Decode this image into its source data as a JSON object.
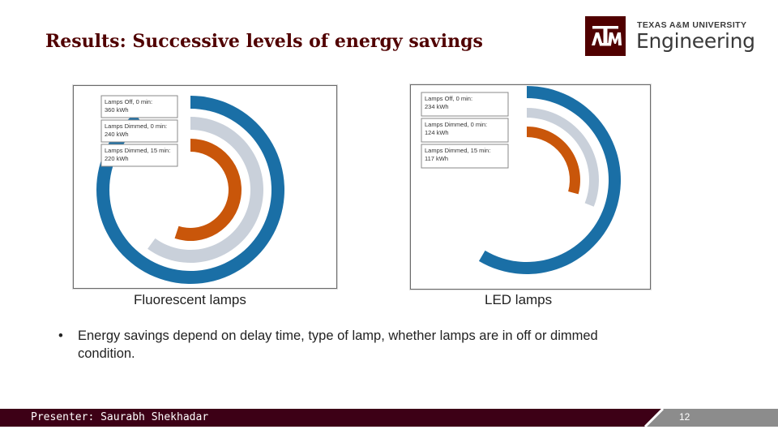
{
  "slide": {
    "title": "Results: Successive levels of energy savings",
    "logo": {
      "university": "TEXAS A&M UNIVERSITY",
      "college": "Engineering"
    },
    "captions": {
      "fluorescent": "Fluorescent lamps",
      "led": "LED lamps"
    },
    "bullet": "Energy savings depend on delay time, type of lamp, whether lamps are in off or dimmed condition.",
    "footer": {
      "presenter": "Presenter: Saurabh Shekhadar",
      "page_number": "12"
    },
    "colors": {
      "title": "#500000",
      "footer": "#3d0016",
      "footer_gray": "#8c8c8c"
    }
  },
  "chart_data": [
    {
      "type": "radial-bar",
      "title": "",
      "series": [
        {
          "name": "Lamps Off, 0 min",
          "label": "Lamps Off, 0 min:",
          "value_label": "360 kWh",
          "value": 360,
          "color": "#1a6fa6"
        },
        {
          "name": "Lamps Dimmed, 0 min",
          "label": "Lamps Dimmed, 0 min:",
          "value_label": "240 kWh",
          "value": 240,
          "color": "#c9d0da"
        },
        {
          "name": "Lamps Dimmed, 15 min",
          "label": "Lamps Dimmed, 15 min:",
          "value_label": "220 kWh",
          "value": 220,
          "color": "#c9560a"
        }
      ],
      "max": 400,
      "legend_position": "top-left"
    },
    {
      "type": "radial-bar",
      "title": "",
      "series": [
        {
          "name": "Lamps Off, 0 min",
          "label": "Lamps Off, 0 min:",
          "value_label": "234 kWh",
          "value": 234,
          "color": "#1a6fa6"
        },
        {
          "name": "Lamps Dimmed, 0 min",
          "label": "Lamps Dimmed, 0 min:",
          "value_label": "124 kWh",
          "value": 124,
          "color": "#c9d0da"
        },
        {
          "name": "Lamps Dimmed, 15 min",
          "label": "Lamps Dimmed, 15 min:",
          "value_label": "117 kWh",
          "value": 117,
          "color": "#c9560a"
        }
      ],
      "max": 400,
      "legend_position": "top-left"
    }
  ]
}
